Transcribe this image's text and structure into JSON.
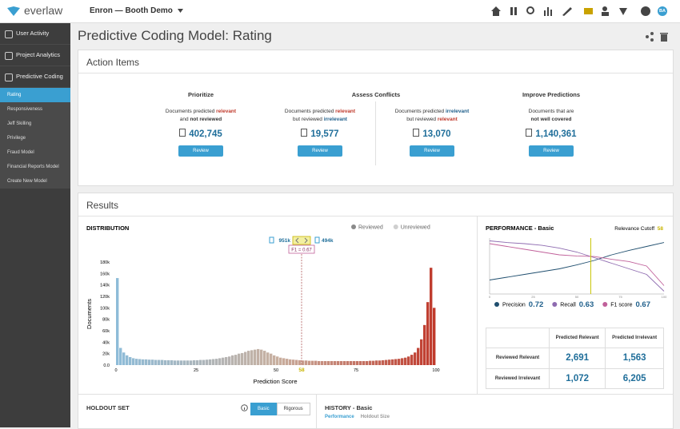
{
  "header": {
    "brand": "everlaw",
    "project": "Enron — Booth Demo",
    "avatar": "BA"
  },
  "sidebar": {
    "items": [
      "User Activity",
      "Project Analytics",
      "Predictive Coding"
    ],
    "subitems": [
      "Rating",
      "Responsiveness",
      "Jeff Skilling",
      "Privilege",
      "Fraud Model",
      "Financial Reports Model",
      "Create New Model"
    ],
    "active_subitem": 0
  },
  "page": {
    "title": "Predictive Coding Model: Rating"
  },
  "action_items": {
    "title": "Action Items",
    "groups": [
      {
        "title": "Prioritize",
        "cards": [
          {
            "lines": [
              [
                {
                  "text": "Documents predicted "
                },
                {
                  "text": "relevant",
                  "tone": "relevant"
                }
              ],
              [
                {
                  "text": "and "
                },
                {
                  "text": "not reviewed",
                  "tone": "bold"
                }
              ]
            ],
            "count": "402,745",
            "button": "Review"
          }
        ]
      },
      {
        "title": "Assess Conflicts",
        "cards": [
          {
            "lines": [
              [
                {
                  "text": "Documents predicted "
                },
                {
                  "text": "relevant",
                  "tone": "relevant"
                }
              ],
              [
                {
                  "text": "but reviewed "
                },
                {
                  "text": "irrelevant",
                  "tone": "irrelevant"
                }
              ]
            ],
            "count": "19,577",
            "button": "Review"
          },
          {
            "lines": [
              [
                {
                  "text": "Documents predicted "
                },
                {
                  "text": "irrelevant",
                  "tone": "irrelevant"
                }
              ],
              [
                {
                  "text": "but reviewed "
                },
                {
                  "text": "relevant",
                  "tone": "relevant"
                }
              ]
            ],
            "count": "13,070",
            "button": "Review"
          }
        ]
      },
      {
        "title": "Improve Predictions",
        "cards": [
          {
            "lines": [
              [
                {
                  "text": "Documents that are"
                }
              ],
              [
                {
                  "text": "not well covered",
                  "tone": "bold"
                }
              ]
            ],
            "count": "1,140,361",
            "button": "Review"
          }
        ]
      }
    ]
  },
  "results": {
    "title": "Results",
    "distribution": {
      "type": "histogram",
      "title": "DISTRIBUTION",
      "legend": [
        {
          "name": "Reviewed",
          "color": "#8a8a8a"
        },
        {
          "name": "Unreviewed",
          "color": "#cfcfcf"
        }
      ],
      "y_label": "Documents",
      "x_label": "Prediction Score",
      "cutoff": 58,
      "cutoff_label": "58",
      "f1_label": "F1 = 0.67",
      "left_count": "951k",
      "right_count": "494k",
      "colors": [
        "#8dbcd9",
        "#c8b0a0",
        "#c0392b"
      ],
      "ylim": [
        0,
        180000
      ],
      "yticks": [
        {
          "value": 0,
          "label": "0.0"
        },
        {
          "value": 20000,
          "label": "20k"
        },
        {
          "value": 40000,
          "label": "40k"
        },
        {
          "value": 60000,
          "label": "60k"
        },
        {
          "value": 80000,
          "label": "80k"
        },
        {
          "value": 100000,
          "label": "100k"
        },
        {
          "value": 120000,
          "label": "120k"
        },
        {
          "value": 140000,
          "label": "140k"
        },
        {
          "value": 160000,
          "label": "160k"
        },
        {
          "value": 180000,
          "label": "180k"
        }
      ],
      "xlim": [
        0,
        100
      ],
      "xticks": [
        0,
        25,
        50,
        75,
        100
      ],
      "bins": [
        0,
        1,
        2,
        3,
        4,
        5,
        6,
        7,
        8,
        9,
        10,
        11,
        12,
        13,
        14,
        15,
        16,
        17,
        18,
        19,
        20,
        21,
        22,
        23,
        24,
        25,
        26,
        27,
        28,
        29,
        30,
        31,
        32,
        33,
        34,
        35,
        36,
        37,
        38,
        39,
        40,
        41,
        42,
        43,
        44,
        45,
        46,
        47,
        48,
        49,
        50,
        51,
        52,
        53,
        54,
        55,
        56,
        57,
        58,
        59,
        60,
        61,
        62,
        63,
        64,
        65,
        66,
        67,
        68,
        69,
        70,
        71,
        72,
        73,
        74,
        75,
        76,
        77,
        78,
        79,
        80,
        81,
        82,
        83,
        84,
        85,
        86,
        87,
        88,
        89,
        90,
        91,
        92,
        93,
        94,
        95,
        96,
        97,
        98,
        99,
        100
      ],
      "counts": [
        152000,
        30000,
        22000,
        17000,
        14000,
        12000,
        11000,
        10500,
        10000,
        10000,
        9500,
        9500,
        9000,
        9000,
        9000,
        8500,
        8500,
        8500,
        8000,
        8000,
        8000,
        8000,
        8000,
        8000,
        8500,
        8500,
        9000,
        9000,
        9500,
        10000,
        10500,
        11000,
        12000,
        13000,
        14000,
        15000,
        17000,
        18000,
        20000,
        21000,
        23000,
        25000,
        26000,
        27000,
        28000,
        27000,
        25000,
        22000,
        20000,
        17000,
        15000,
        13000,
        12000,
        11000,
        10000,
        9500,
        9000,
        8500,
        8000,
        8000,
        7500,
        7500,
        7500,
        7000,
        7000,
        7000,
        7000,
        7000,
        7000,
        7000,
        7000,
        7000,
        7000,
        7000,
        7000,
        7000,
        7000,
        7000,
        7000,
        7500,
        7500,
        8000,
        8000,
        8500,
        9000,
        9500,
        10000,
        10500,
        11000,
        12000,
        13000,
        15000,
        18000,
        22000,
        30000,
        45000,
        70000,
        110000,
        170000,
        100000
      ]
    },
    "performance": {
      "type": "line",
      "title": "PERFORMANCE - Basic",
      "cutoff_title": "Relevance Cutoff",
      "cutoff_label": "58",
      "cutoff": 58,
      "x": [
        0,
        10,
        20,
        30,
        40,
        50,
        60,
        70,
        80,
        90,
        100
      ],
      "xlim": [
        0,
        100
      ],
      "xticks": [
        0,
        25,
        50,
        75,
        100
      ],
      "ylim": [
        0,
        1
      ],
      "series": [
        {
          "name": "Precision",
          "summary": "0.72",
          "color": "#1f4e6e",
          "values": [
            0.25,
            0.3,
            0.35,
            0.4,
            0.45,
            0.52,
            0.6,
            0.7,
            0.78,
            0.85,
            0.92
          ]
        },
        {
          "name": "Recall",
          "summary": "0.63",
          "color": "#8e6bb0",
          "values": [
            0.95,
            0.92,
            0.9,
            0.87,
            0.82,
            0.75,
            0.65,
            0.55,
            0.45,
            0.35,
            0.05
          ]
        },
        {
          "name": "F1 score",
          "summary": "0.67",
          "color": "#c0609a",
          "values": [
            0.9,
            0.85,
            0.8,
            0.75,
            0.7,
            0.68,
            0.67,
            0.62,
            0.58,
            0.5,
            0.15
          ]
        }
      ]
    },
    "confusion": {
      "columns": [
        "Predicted Relevant",
        "Predicted Irrelevant"
      ],
      "rows": [
        {
          "label": "Reviewed Relevant",
          "cells": [
            "2,691",
            "1,563"
          ]
        },
        {
          "label": "Reviewed Irrelevant",
          "cells": [
            "1,072",
            "6,205"
          ]
        }
      ]
    },
    "holdout": {
      "title": "HOLDOUT SET",
      "buttons": [
        "Basic",
        "Rigorous"
      ]
    },
    "history": {
      "title": "HISTORY - Basic",
      "tabs": [
        "Performance",
        "Holdout Size"
      ]
    }
  }
}
